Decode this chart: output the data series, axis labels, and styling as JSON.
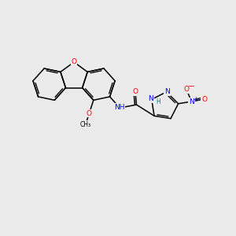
{
  "background_color": "#ebebeb",
  "bond_color": "#000000",
  "atom_colors": {
    "O": "#ff0000",
    "N": "#0000ff",
    "C": "#000000",
    "H": "#008080"
  },
  "figsize": [
    3.0,
    3.0
  ],
  "dpi": 100
}
